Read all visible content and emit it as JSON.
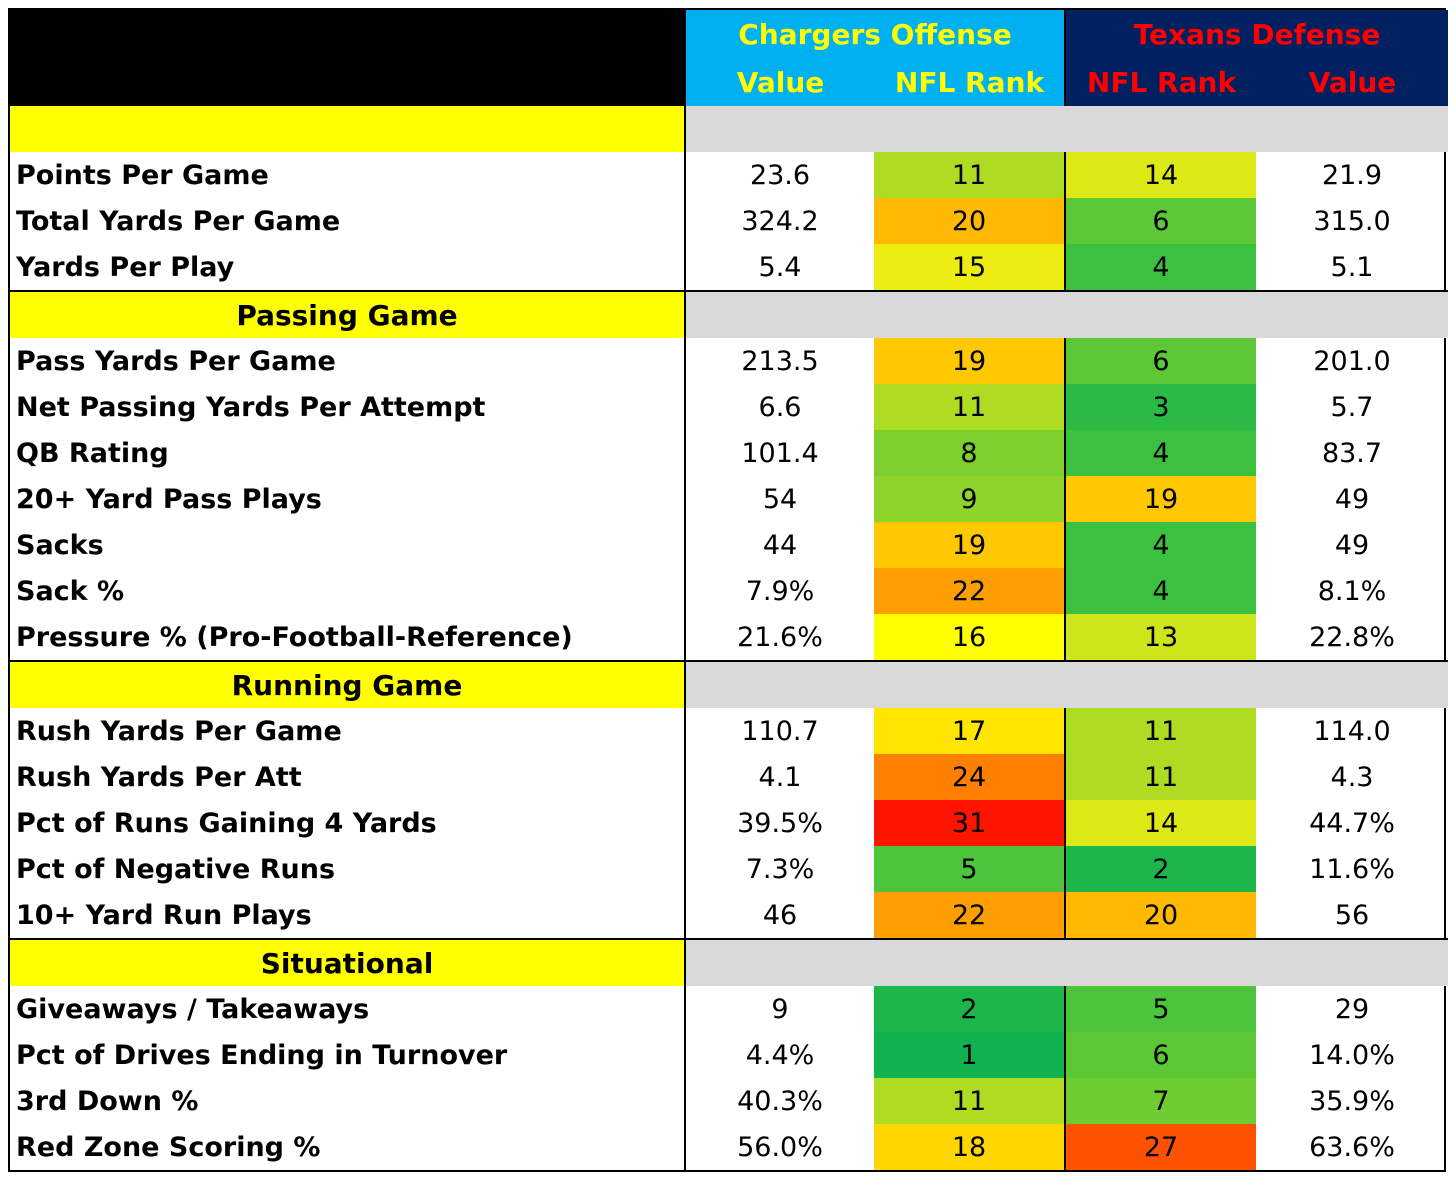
{
  "header": {
    "offense_title": "Chargers Offense",
    "offense_col1": "Value",
    "offense_col2": "NFL Rank",
    "defense_title": "Texans Defense",
    "defense_col1": "NFL Rank",
    "defense_col2": "Value",
    "offense_bg": "#00b0f0",
    "defense_bg": "#002060",
    "offense_text_color": "#ffff00",
    "defense_text_color": "#ff0000"
  },
  "sections": [
    {
      "title": "",
      "rows": [
        {
          "label": "Points Per Game",
          "off_value": "23.6",
          "off_rank": "11",
          "def_rank": "14",
          "def_value": "21.9"
        },
        {
          "label": "Total Yards Per Game",
          "off_value": "324.2",
          "off_rank": "20",
          "def_rank": "6",
          "def_value": "315.0"
        },
        {
          "label": "Yards Per Play",
          "off_value": "5.4",
          "off_rank": "15",
          "def_rank": "4",
          "def_value": "5.1"
        }
      ]
    },
    {
      "title": "Passing Game",
      "rows": [
        {
          "label": "Pass Yards Per Game",
          "off_value": "213.5",
          "off_rank": "19",
          "def_rank": "6",
          "def_value": "201.0"
        },
        {
          "label": "Net Passing Yards Per Attempt",
          "off_value": "6.6",
          "off_rank": "11",
          "def_rank": "3",
          "def_value": "5.7"
        },
        {
          "label": "QB Rating",
          "off_value": "101.4",
          "off_rank": "8",
          "def_rank": "4",
          "def_value": "83.7"
        },
        {
          "label": "20+ Yard Pass Plays",
          "off_value": "54",
          "off_rank": "9",
          "def_rank": "19",
          "def_value": "49"
        },
        {
          "label": "Sacks",
          "off_value": "44",
          "off_rank": "19",
          "def_rank": "4",
          "def_value": "49"
        },
        {
          "label": "Sack %",
          "off_value": "7.9%",
          "off_rank": "22",
          "def_rank": "4",
          "def_value": "8.1%"
        },
        {
          "label": "Pressure % (Pro-Football-Reference)",
          "off_value": "21.6%",
          "off_rank": "16",
          "def_rank": "13",
          "def_value": "22.8%"
        }
      ]
    },
    {
      "title": "Running Game",
      "rows": [
        {
          "label": "Rush Yards Per Game",
          "off_value": "110.7",
          "off_rank": "17",
          "def_rank": "11",
          "def_value": "114.0"
        },
        {
          "label": "Rush Yards Per Att",
          "off_value": "4.1",
          "off_rank": "24",
          "def_rank": "11",
          "def_value": "4.3"
        },
        {
          "label": "Pct of Runs Gaining 4 Yards",
          "off_value": "39.5%",
          "off_rank": "31",
          "def_rank": "14",
          "def_value": "44.7%"
        },
        {
          "label": "Pct of Negative Runs",
          "off_value": "7.3%",
          "off_rank": "5",
          "def_rank": "2",
          "def_value": "11.6%"
        },
        {
          "label": "10+ Yard Run Plays",
          "off_value": "46",
          "off_rank": "22",
          "def_rank": "20",
          "def_value": "56"
        }
      ]
    },
    {
      "title": "Situational",
      "rows": [
        {
          "label": "Giveaways / Takeaways",
          "off_value": "9",
          "off_rank": "2",
          "def_rank": "5",
          "def_value": "29"
        },
        {
          "label": "Pct of Drives Ending in Turnover",
          "off_value": "4.4%",
          "off_rank": "1",
          "def_rank": "6",
          "def_value": "14.0%"
        },
        {
          "label": "3rd Down %",
          "off_value": "40.3%",
          "off_rank": "11",
          "def_rank": "7",
          "def_value": "35.9%"
        },
        {
          "label": "Red Zone Scoring %",
          "off_value": "56.0%",
          "off_rank": "18",
          "def_rank": "27",
          "def_value": "63.6%"
        }
      ]
    }
  ],
  "rank_colors": {
    "1": "#0fb24f",
    "2": "#1cb64a",
    "3": "#2bbb45",
    "4": "#3bc040",
    "5": "#4cc43b",
    "6": "#5cc836",
    "7": "#6dcc32",
    "8": "#7dd02e",
    "9": "#8ed42a",
    "10": "#9ed826",
    "11": "#aedc22",
    "12": "#bee01e",
    "13": "#cde51a",
    "14": "#dde916",
    "15": "#eded12",
    "16": "#ffff00",
    "17": "#ffe600",
    "18": "#ffd700",
    "19": "#ffc800",
    "20": "#ffb900",
    "21": "#ffaa00",
    "22": "#ff9e00",
    "23": "#ff8f00",
    "24": "#ff7f00",
    "25": "#ff7000",
    "26": "#ff6100",
    "27": "#ff5200",
    "28": "#ff4200",
    "29": "#ff3300",
    "30": "#ff2400",
    "31": "#ff1400",
    "32": "#ff0000"
  }
}
